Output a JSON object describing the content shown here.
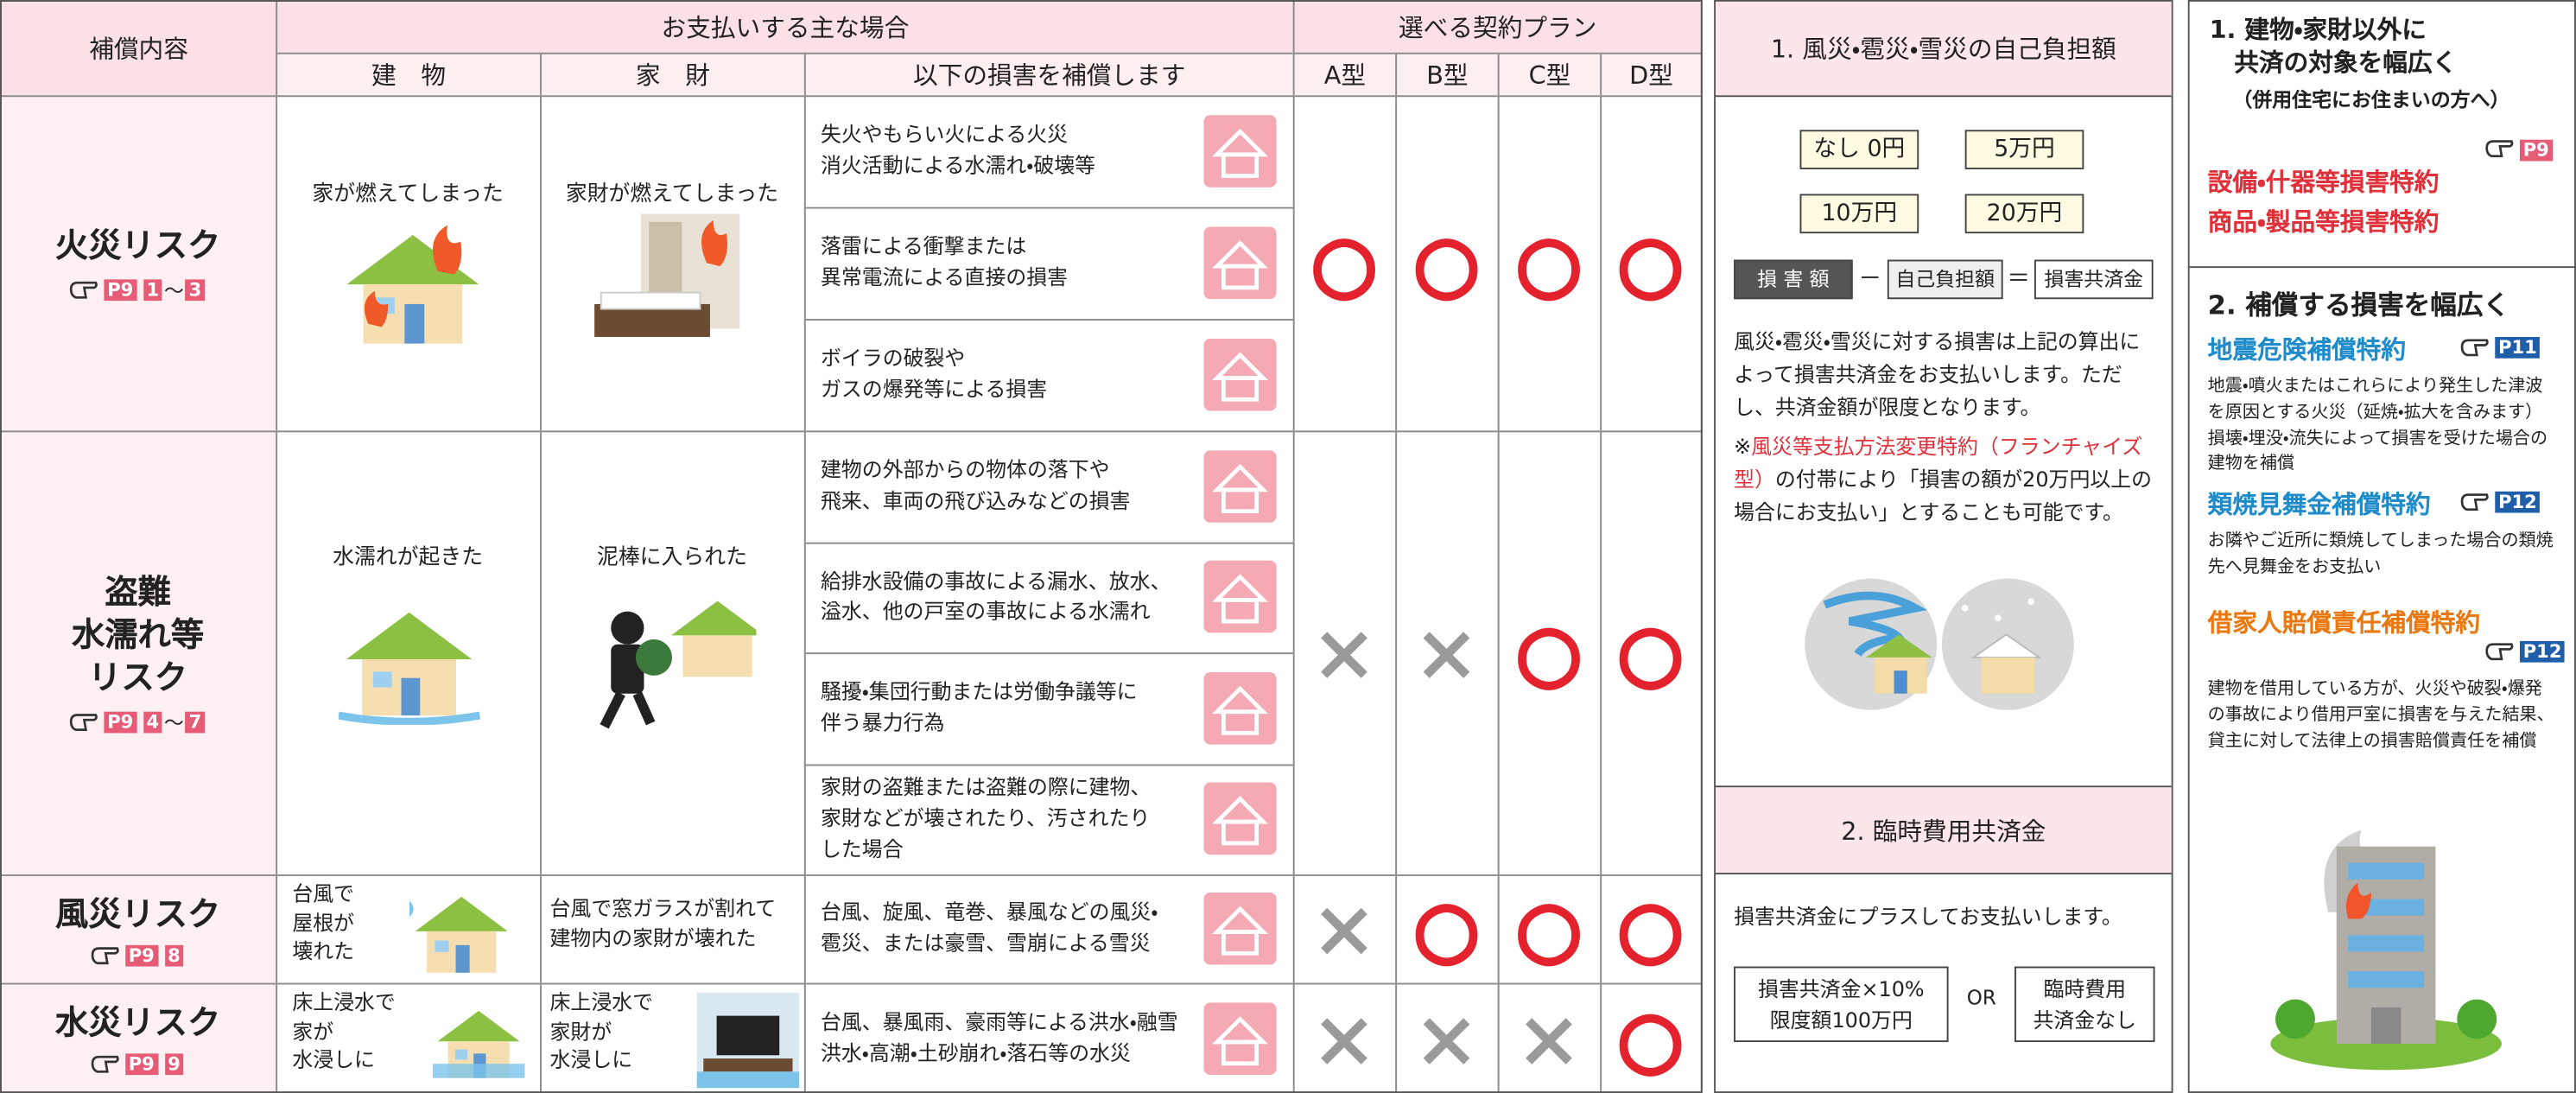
{
  "table": {
    "header": {
      "coverage": "補償内容",
      "situations": "お支払いする主な場合",
      "building": "建　物",
      "contents": "家　財",
      "damages": "以下の損害を補償します",
      "plans": "選べる契約プラン",
      "plan_names": [
        "A型",
        "B型",
        "C型",
        "D型"
      ]
    },
    "rows": [
      {
        "risk": "火災リスク",
        "ref": "P9",
        "ref_start": "1",
        "range": "～",
        "ref_end": "3",
        "building": "家が燃えてしまった",
        "contents": "家財が燃えてしまった",
        "damages": [
          "失火やもらい火による火災\n消火活動による水濡れ・破壊等",
          "落雷による衝撃または\n異常電流による直接の損害",
          "ボイラの破裂や\nガスの爆発等による損害"
        ],
        "plans": [
          "○",
          "○",
          "○",
          "○"
        ]
      },
      {
        "risk": "盗難\n水濡れ等\nリスク",
        "ref": "P9",
        "ref_start": "4",
        "range": "～",
        "ref_end": "7",
        "building": "水濡れが起きた",
        "contents": "泥棒に入られた",
        "damages": [
          "建物の外部からの物体の落下や\n飛来、車両の飛び込みなどの損害",
          "給排水設備の事故による漏水、放水、\n溢水、他の戸室の事故による水濡れ",
          "騒擾・集団行動または労働争議等に\n伴う暴力行為",
          "家財の盗難または盗難の際に建物、\n家財などが壊されたり、汚されたり\nした場合"
        ],
        "plans": [
          "×",
          "×",
          "○",
          "○"
        ]
      },
      {
        "risk": "風災リスク",
        "ref": "P9",
        "ref_start": "8",
        "building": "台風で\n屋根が\n壊れた",
        "contents": "台風で窓ガラスが割れて\n建物内の家財が壊れた",
        "damages": [
          "台風、旋風、竜巻、暴風などの風災・\n雹災、または豪雪、雪崩による雪災"
        ],
        "plans": [
          "×",
          "○",
          "○",
          "○"
        ]
      },
      {
        "risk": "水災リスク",
        "ref": "P9",
        "ref_start": "9",
        "building": "床上浸水で\n家が\n水浸しに",
        "contents": "床上浸水で\n家財が\n水浸しに",
        "damages": [
          "台風、暴風雨、豪雨等による洪水・融雪\n洪水・高潮・土砂崩れ・落石等の水災"
        ],
        "plans": [
          "×",
          "×",
          "×",
          "○"
        ]
      }
    ]
  },
  "middle": {
    "title1": "1. 風災・雹災・雪災の自己負担額",
    "options": [
      "なし 0円",
      "5万円",
      "10万円",
      "20万円"
    ],
    "formula": [
      "損 害 額",
      "－",
      "自己負担額",
      "＝",
      "損害共済金"
    ],
    "text": "風災・雹災・雪災に対する損害は上記の算出によって損害共済金をお支払いします。ただし、共済金額が限度となります。",
    "note_mark": "※",
    "note_highlight": "風災等支払方法変更特約（フランチャイズ型）",
    "note_rest": "の付帯により「損害の額が20万円以上の場合にお支払い」とすることも可能です。",
    "title2": "2. 臨時費用共済金",
    "text2": "損害共済金にプラスしてお支払いします。",
    "box1": "損害共済金×10%\n限度額100万円",
    "or": "OR",
    "box2": "臨時費用\n共済金なし"
  },
  "right": {
    "title1": "1. 建物・家財以外に\n　共済の対象を幅広く",
    "subtitle1": "（併用住宅にお住まいの方へ）",
    "ref1": "P9",
    "riders": [
      "設備・什器等損害特約",
      "商品・製品等損害特約"
    ],
    "title2": "2. 補償する損害を幅広く",
    "items": [
      {
        "name": "地震危険補償特約",
        "color": "#1e8bcb",
        "ref": "P11",
        "desc": "地震・噴火またはこれらにより発生した津波を原因とする火災（延焼・拡大を含みます）損壊・埋没・流失によって損害を受けた場合の建物を補償"
      },
      {
        "name": "類焼見舞金補償特約",
        "color": "#1e8bcb",
        "ref": "P12",
        "desc": "お隣やご近所に類焼してしまった場合の類焼先へ見舞金をお支払い"
      },
      {
        "name": "借家人賠償責任補償特約",
        "color": "#e8780f",
        "ref": "P12",
        "desc": "建物を借用している方が、火災や破裂・爆発の事故により借用戸室に損害を与えた結果、貸主に対して法律上の損害賠償責任を補償"
      }
    ]
  }
}
